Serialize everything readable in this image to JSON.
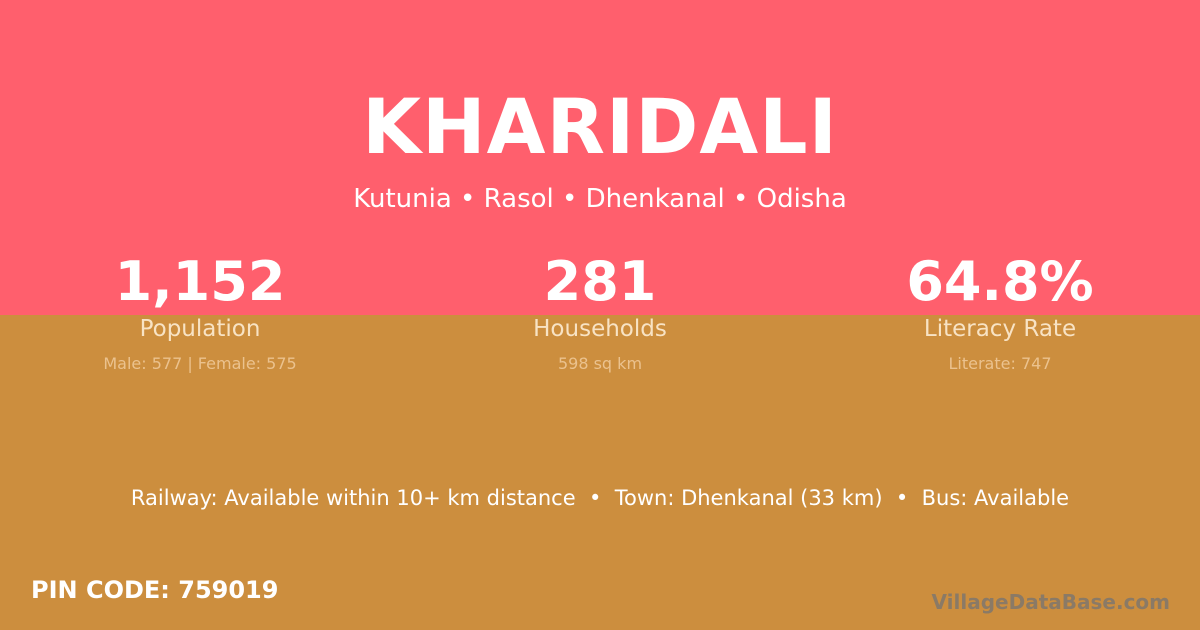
{
  "title": "KHARIDALI",
  "location": "Kutunia • Rasol • Dhenkanal • Odisha",
  "stats": [
    {
      "value": "1,152",
      "label": "Population",
      "detail": "Male: 577 | Female: 575"
    },
    {
      "value": "281",
      "label": "Households",
      "detail": "598 sq km"
    },
    {
      "value": "64.8%",
      "label": "Literacy Rate",
      "detail": "Literate: 747"
    }
  ],
  "amenities": "Railway: Available within 10+ km distance  •  Town: Dhenkanal (33 km)  •  Bus: Available",
  "pin_code": "PIN CODE: 759019",
  "watermark": "VillageDataBase.com",
  "colors": {
    "top": "#FF5F6D",
    "bottom": "#CC8E3E"
  }
}
